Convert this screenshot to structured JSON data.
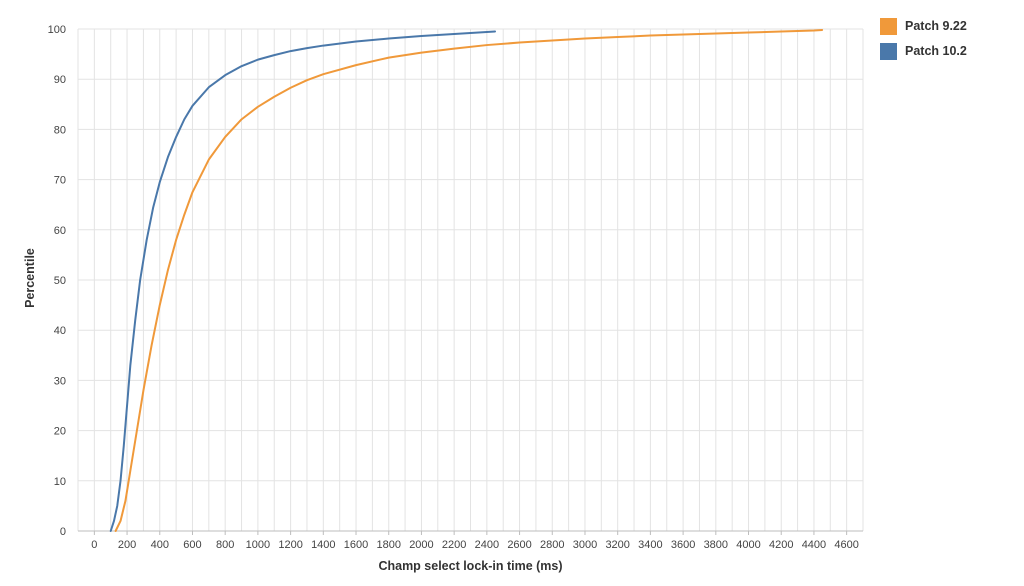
{
  "chart_data": {
    "type": "line",
    "title": "",
    "xlabel": "Champ select lock-in time (ms)",
    "ylabel": "Percentile",
    "xlim": [
      -100,
      4700
    ],
    "ylim": [
      0,
      100
    ],
    "x_ticks": [
      0,
      200,
      400,
      600,
      800,
      1000,
      1200,
      1400,
      1600,
      1800,
      2000,
      2200,
      2400,
      2600,
      2800,
      3000,
      3200,
      3400,
      3600,
      3800,
      4000,
      4200,
      4400,
      4600
    ],
    "y_ticks": [
      0,
      10,
      20,
      30,
      40,
      50,
      60,
      70,
      80,
      90,
      100
    ],
    "grid": true,
    "legend_position": "top-right",
    "series": [
      {
        "name": "Patch 9.22",
        "color": "#f0993a",
        "points": [
          [
            130,
            0
          ],
          [
            160,
            2
          ],
          [
            190,
            6
          ],
          [
            220,
            12
          ],
          [
            260,
            20
          ],
          [
            300,
            28
          ],
          [
            350,
            37
          ],
          [
            400,
            45
          ],
          [
            450,
            52
          ],
          [
            500,
            58
          ],
          [
            550,
            63
          ],
          [
            600,
            67.5
          ],
          [
            700,
            74
          ],
          [
            800,
            78.5
          ],
          [
            900,
            82
          ],
          [
            1000,
            84.5
          ],
          [
            1100,
            86.5
          ],
          [
            1200,
            88.3
          ],
          [
            1300,
            89.8
          ],
          [
            1400,
            91
          ],
          [
            1600,
            92.8
          ],
          [
            1800,
            94.3
          ],
          [
            2000,
            95.3
          ],
          [
            2200,
            96.1
          ],
          [
            2400,
            96.8
          ],
          [
            2600,
            97.3
          ],
          [
            2800,
            97.7
          ],
          [
            3000,
            98.1
          ],
          [
            3200,
            98.4
          ],
          [
            3400,
            98.7
          ],
          [
            3600,
            98.9
          ],
          [
            3800,
            99.1
          ],
          [
            4000,
            99.3
          ],
          [
            4200,
            99.5
          ],
          [
            4400,
            99.7
          ],
          [
            4450,
            99.8
          ]
        ]
      },
      {
        "name": "Patch 10.2",
        "color": "#4a78aa",
        "points": [
          [
            100,
            0
          ],
          [
            120,
            2
          ],
          [
            140,
            5
          ],
          [
            160,
            10
          ],
          [
            180,
            17
          ],
          [
            200,
            25
          ],
          [
            220,
            33
          ],
          [
            250,
            42
          ],
          [
            280,
            50
          ],
          [
            320,
            58
          ],
          [
            360,
            64.5
          ],
          [
            400,
            69.5
          ],
          [
            450,
            74.5
          ],
          [
            500,
            78.5
          ],
          [
            550,
            82
          ],
          [
            600,
            84.7
          ],
          [
            700,
            88.4
          ],
          [
            800,
            90.8
          ],
          [
            900,
            92.6
          ],
          [
            1000,
            93.9
          ],
          [
            1100,
            94.8
          ],
          [
            1200,
            95.6
          ],
          [
            1300,
            96.2
          ],
          [
            1400,
            96.7
          ],
          [
            1600,
            97.5
          ],
          [
            1800,
            98.1
          ],
          [
            2000,
            98.6
          ],
          [
            2200,
            99
          ],
          [
            2400,
            99.4
          ],
          [
            2450,
            99.5
          ]
        ]
      }
    ]
  }
}
